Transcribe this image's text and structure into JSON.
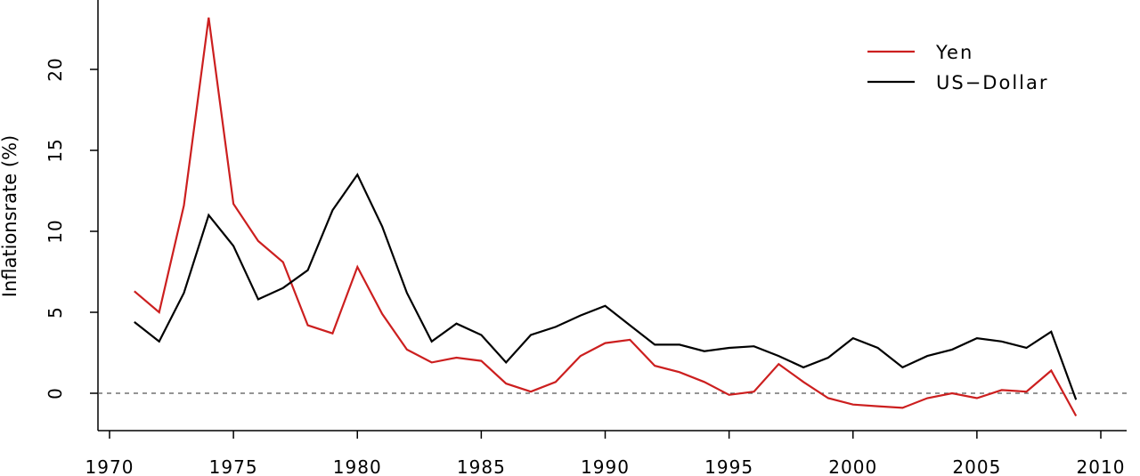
{
  "chart_data": {
    "type": "line",
    "title": "",
    "xlabel": "",
    "ylabel": "Inflationsrate (%)",
    "xlim": [
      1970,
      2010
    ],
    "ylim": [
      -2.3,
      23.8
    ],
    "xticks": [
      1970,
      1975,
      1980,
      1985,
      1990,
      1995,
      2000,
      2005,
      2010
    ],
    "yticks": [
      0,
      5,
      10,
      15,
      20
    ],
    "reference_line": {
      "y": 0,
      "style": "dashed"
    },
    "legend_position": "top-right",
    "grid": false,
    "x": [
      1971,
      1972,
      1973,
      1974,
      1975,
      1976,
      1977,
      1978,
      1979,
      1980,
      1981,
      1982,
      1983,
      1984,
      1985,
      1986,
      1987,
      1988,
      1989,
      1990,
      1991,
      1992,
      1993,
      1994,
      1995,
      1996,
      1997,
      1998,
      1999,
      2000,
      2001,
      2002,
      2003,
      2004,
      2005,
      2006,
      2007,
      2008,
      2009
    ],
    "series": [
      {
        "name": "Yen",
        "color": "#cc1f1f",
        "values": [
          6.3,
          5.0,
          11.6,
          23.2,
          11.7,
          9.4,
          8.1,
          4.2,
          3.7,
          7.8,
          4.9,
          2.7,
          1.9,
          2.2,
          2.0,
          0.6,
          0.1,
          0.7,
          2.3,
          3.1,
          3.3,
          1.7,
          1.3,
          0.7,
          -0.1,
          0.1,
          1.8,
          0.7,
          -0.3,
          -0.7,
          -0.8,
          -0.9,
          -0.3,
          0.0,
          -0.3,
          0.2,
          0.1,
          1.4,
          -1.4
        ]
      },
      {
        "name": "US−Dollar",
        "color": "#000000",
        "values": [
          4.4,
          3.2,
          6.2,
          11.0,
          9.1,
          5.8,
          6.5,
          7.6,
          11.3,
          13.5,
          10.3,
          6.2,
          3.2,
          4.3,
          3.6,
          1.9,
          3.6,
          4.1,
          4.8,
          5.4,
          4.2,
          3.0,
          3.0,
          2.6,
          2.8,
          2.9,
          2.3,
          1.6,
          2.2,
          3.4,
          2.8,
          1.6,
          2.3,
          2.7,
          3.4,
          3.2,
          2.8,
          3.8,
          -0.4
        ]
      }
    ]
  }
}
